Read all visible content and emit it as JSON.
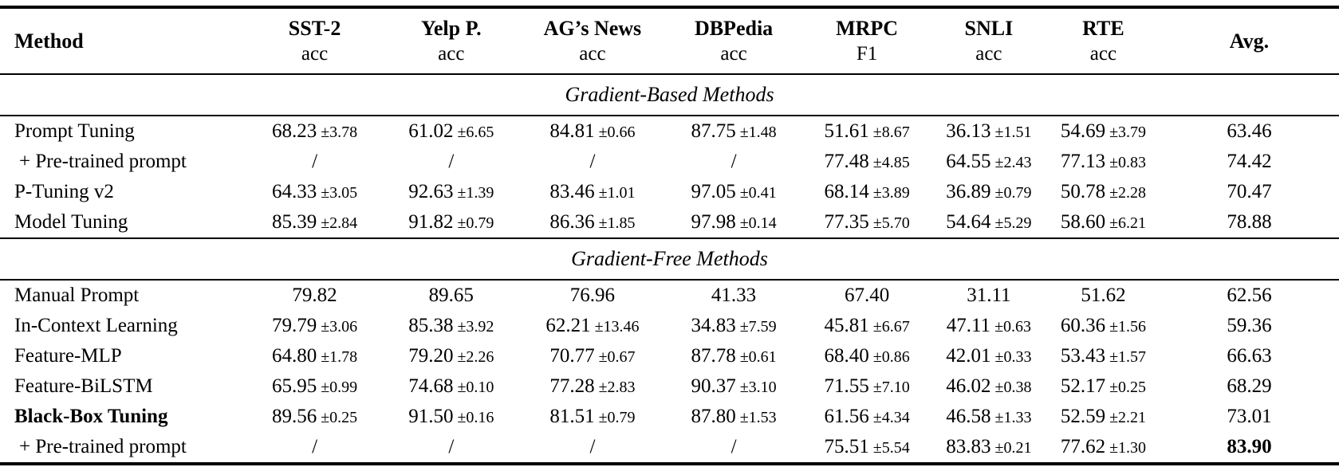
{
  "table": {
    "columns": [
      {
        "label": "Method",
        "sub": ""
      },
      {
        "label": "SST-2",
        "sub": "acc"
      },
      {
        "label": "Yelp P.",
        "sub": "acc"
      },
      {
        "label": "AG’s News",
        "sub": "acc"
      },
      {
        "label": "DBPedia",
        "sub": "acc"
      },
      {
        "label": "MRPC",
        "sub": "F1"
      },
      {
        "label": "SNLI",
        "sub": "acc"
      },
      {
        "label": "RTE",
        "sub": "acc"
      },
      {
        "label": "Avg.",
        "sub": ""
      }
    ],
    "sections": [
      {
        "title": "Gradient-Based Methods",
        "rows": [
          {
            "method": "Prompt Tuning",
            "bold_method": false,
            "bold_avg": false,
            "cells": [
              "68.23 ±3.78",
              "61.02 ±6.65",
              "84.81 ±0.66",
              "87.75 ±1.48",
              "51.61 ±8.67",
              "36.13 ±1.51",
              "54.69 ±3.79",
              "63.46"
            ]
          },
          {
            "method": "+ Pre-trained prompt",
            "bold_method": false,
            "bold_avg": false,
            "cells": [
              "/",
              "/",
              "/",
              "/",
              "77.48 ±4.85",
              "64.55 ±2.43",
              "77.13 ±0.83",
              "74.42"
            ]
          },
          {
            "method": "P-Tuning v2",
            "bold_method": false,
            "bold_avg": false,
            "cells": [
              "64.33 ±3.05",
              "92.63 ±1.39",
              "83.46 ±1.01",
              "97.05 ±0.41",
              "68.14 ±3.89",
              "36.89 ±0.79",
              "50.78 ±2.28",
              "70.47"
            ]
          },
          {
            "method": "Model Tuning",
            "bold_method": false,
            "bold_avg": false,
            "cells": [
              "85.39 ±2.84",
              "91.82 ±0.79",
              "86.36 ±1.85",
              "97.98 ±0.14",
              "77.35 ±5.70",
              "54.64 ±5.29",
              "58.60 ±6.21",
              "78.88"
            ]
          }
        ]
      },
      {
        "title": "Gradient-Free Methods",
        "rows": [
          {
            "method": "Manual Prompt",
            "bold_method": false,
            "bold_avg": false,
            "cells": [
              "79.82",
              "89.65",
              "76.96",
              "41.33",
              "67.40",
              "31.11",
              "51.62",
              "62.56"
            ]
          },
          {
            "method": "In-Context Learning",
            "bold_method": false,
            "bold_avg": false,
            "cells": [
              "79.79 ±3.06",
              "85.38 ±3.92",
              "62.21 ±13.46",
              "34.83 ±7.59",
              "45.81 ±6.67",
              "47.11 ±0.63",
              "60.36 ±1.56",
              "59.36"
            ]
          },
          {
            "method": "Feature-MLP",
            "bold_method": false,
            "bold_avg": false,
            "cells": [
              "64.80 ±1.78",
              "79.20 ±2.26",
              "70.77 ±0.67",
              "87.78 ±0.61",
              "68.40 ±0.86",
              "42.01 ±0.33",
              "53.43 ±1.57",
              "66.63"
            ]
          },
          {
            "method": "Feature-BiLSTM",
            "bold_method": false,
            "bold_avg": false,
            "cells": [
              "65.95 ±0.99",
              "74.68 ±0.10",
              "77.28 ±2.83",
              "90.37 ±3.10",
              "71.55 ±7.10",
              "46.02 ±0.38",
              "52.17 ±0.25",
              "68.29"
            ]
          },
          {
            "method": "Black-Box Tuning",
            "bold_method": true,
            "bold_avg": false,
            "cells": [
              "89.56 ±0.25",
              "91.50 ±0.16",
              "81.51 ±0.79",
              "87.80 ±1.53",
              "61.56 ±4.34",
              "46.58 ±1.33",
              "52.59 ±2.21",
              "73.01"
            ]
          },
          {
            "method": "+ Pre-trained prompt",
            "bold_method": false,
            "bold_avg": true,
            "cells": [
              "/",
              "/",
              "/",
              "/",
              "75.51 ±5.54",
              "83.83 ±0.21",
              "77.62 ±1.30",
              "83.90"
            ]
          }
        ]
      }
    ]
  }
}
